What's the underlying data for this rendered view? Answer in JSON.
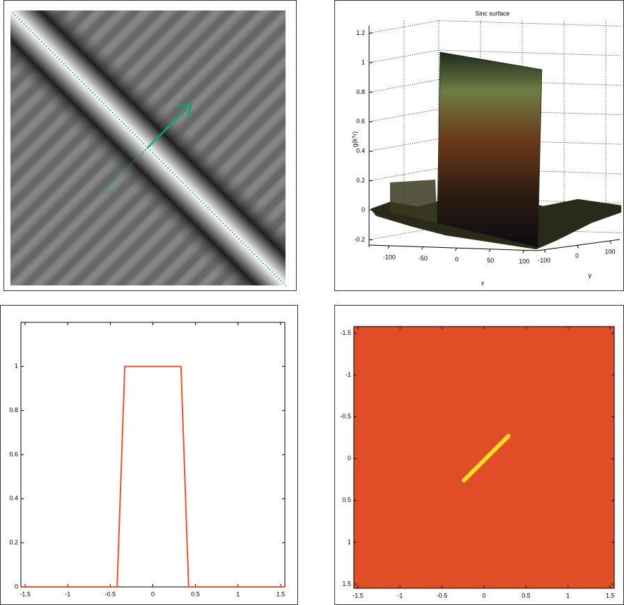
{
  "chart_data": [
    {
      "type": "surface",
      "title": "Sinc surface",
      "zlabel": "g(kᵀr)",
      "xlabel": "x",
      "ylabel": "y",
      "zlim": [
        -0.25,
        1.25
      ],
      "zticks": [
        -0.2,
        0,
        0.2,
        0.4,
        0.6,
        0.8,
        1,
        1.2
      ],
      "xlim": [
        -130,
        120
      ],
      "xticks": [
        -100,
        -50,
        0,
        50,
        100
      ],
      "ylim": [
        -120,
        130
      ],
      "yticks": [
        -100,
        0,
        100
      ],
      "grid": true
    },
    {
      "type": "line",
      "x": [
        -1.55,
        -0.42,
        -0.33,
        0.33,
        0.42,
        1.55
      ],
      "values": [
        0,
        0,
        1,
        1,
        0,
        0
      ],
      "color": "#e8532a",
      "xlim": [
        -1.55,
        1.55
      ],
      "ylim": [
        0,
        1.2
      ],
      "xticks": [
        -1.5,
        -1,
        -0.5,
        0,
        0.5,
        1,
        1.5
      ],
      "yticks": [
        0,
        0.2,
        0.4,
        0.6,
        0.8,
        1
      ]
    },
    {
      "type": "heatmap",
      "background": "#e04e28",
      "color": "#ffe020",
      "x": [
        -0.24,
        0.29
      ],
      "values": [
        0.26,
        -0.27
      ],
      "xlim": [
        -1.55,
        1.55
      ],
      "ylim": [
        -1.58,
        1.55
      ],
      "y_reversed": true,
      "xticks": [
        -1.5,
        -1,
        -0.5,
        0,
        0.5,
        1,
        1.5
      ],
      "yticks": [
        -1.5,
        -1,
        -0.5,
        0,
        0.5,
        1,
        1.5
      ]
    }
  ]
}
